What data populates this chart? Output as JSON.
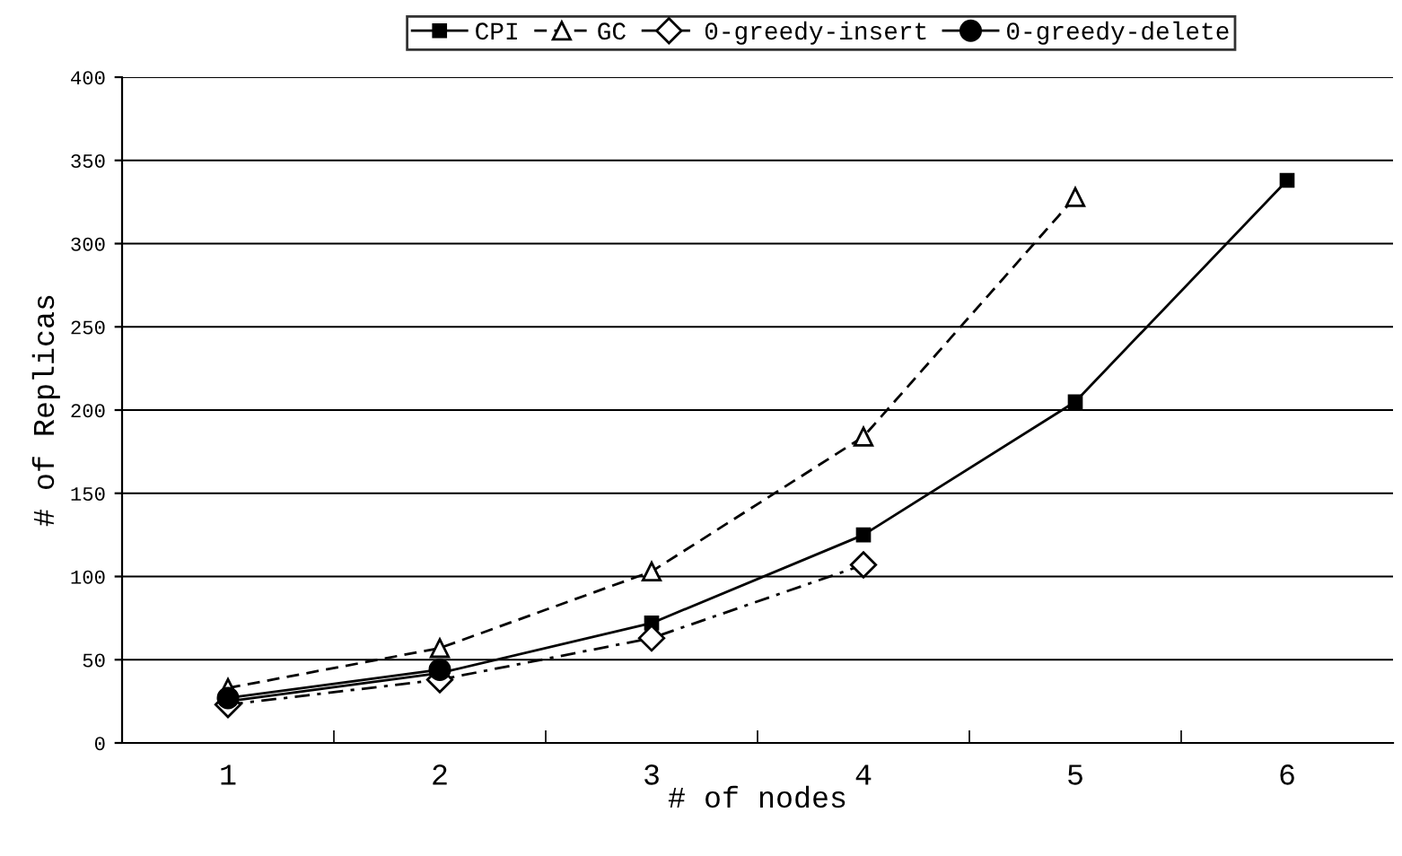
{
  "chart_data": {
    "type": "line",
    "xlabel": "# of nodes",
    "ylabel": "# of Replicas",
    "categories": [
      "1",
      "2",
      "3",
      "4",
      "5",
      "6"
    ],
    "series": [
      {
        "name": "CPI",
        "color": "#000000",
        "marker": "square",
        "line_style": "solid",
        "values": [
          25,
          42,
          72,
          125,
          205,
          338
        ]
      },
      {
        "name": "GC",
        "color": "#000000",
        "marker": "triangle",
        "line_style": "dashed",
        "values": [
          33,
          57,
          103,
          184,
          328,
          null
        ]
      },
      {
        "name": "0-greedy-insert",
        "color": "#000000",
        "marker": "diamond",
        "line_style": "dashdot",
        "values": [
          23,
          38,
          63,
          107,
          null,
          null
        ]
      },
      {
        "name": "0-greedy-delete",
        "color": "#000000",
        "marker": "circle",
        "line_style": "solid",
        "values": [
          27,
          44,
          null,
          null,
          null,
          null
        ]
      }
    ],
    "ylim": [
      0,
      400
    ],
    "yticks": [
      0,
      50,
      100,
      150,
      200,
      250,
      300,
      350,
      400
    ],
    "grid": "y",
    "legend": "top"
  }
}
